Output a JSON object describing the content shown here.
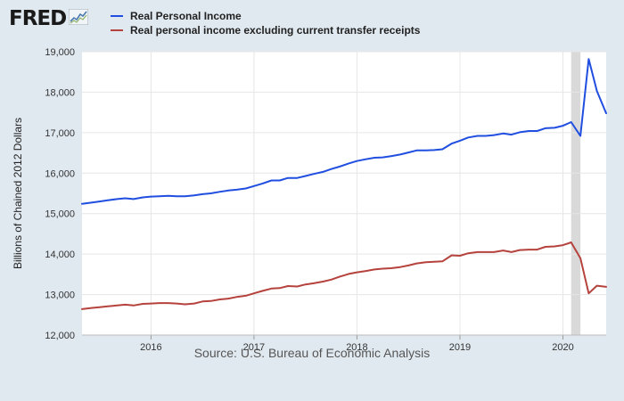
{
  "brand": {
    "logo_text": "FRED",
    "logo_icon": "trend-chart-icon"
  },
  "chart_data": {
    "type": "line",
    "title": "",
    "xlabel": "",
    "ylabel": "Billions of Chained 2012 Dollars",
    "xlim": [
      2015.33,
      2020.42
    ],
    "ylim": [
      12000,
      19000
    ],
    "yticks": [
      12000,
      13000,
      14000,
      15000,
      16000,
      17000,
      18000,
      19000
    ],
    "ytick_labels": [
      "12,000",
      "13,000",
      "14,000",
      "15,000",
      "16,000",
      "17,000",
      "18,000",
      "19,000"
    ],
    "xticks": [
      2016,
      2017,
      2018,
      2019,
      2020
    ],
    "xtick_labels": [
      "2016",
      "2017",
      "2018",
      "2019",
      "2020"
    ],
    "recession": {
      "start": 2020.08,
      "end": 2020.17
    },
    "series": [
      {
        "name": "Real Personal Income",
        "color": "#1f4ee0",
        "x": [
          2015.33,
          2015.42,
          2015.5,
          2015.58,
          2015.67,
          2015.75,
          2015.83,
          2015.92,
          2016.0,
          2016.08,
          2016.17,
          2016.25,
          2016.33,
          2016.42,
          2016.5,
          2016.58,
          2016.67,
          2016.75,
          2016.83,
          2016.92,
          2017.0,
          2017.08,
          2017.17,
          2017.25,
          2017.33,
          2017.42,
          2017.5,
          2017.58,
          2017.67,
          2017.75,
          2017.83,
          2017.92,
          2018.0,
          2018.08,
          2018.17,
          2018.25,
          2018.33,
          2018.42,
          2018.5,
          2018.58,
          2018.67,
          2018.75,
          2018.83,
          2018.92,
          2019.0,
          2019.08,
          2019.17,
          2019.25,
          2019.33,
          2019.42,
          2019.5,
          2019.58,
          2019.67,
          2019.75,
          2019.83,
          2019.92,
          2020.0,
          2020.08,
          2020.17,
          2020.25,
          2020.33,
          2020.42
        ],
        "values": [
          15240,
          15270,
          15300,
          15330,
          15360,
          15380,
          15360,
          15400,
          15420,
          15430,
          15440,
          15430,
          15430,
          15450,
          15480,
          15500,
          15540,
          15570,
          15590,
          15620,
          15680,
          15740,
          15820,
          15820,
          15880,
          15880,
          15930,
          15980,
          16030,
          16100,
          16160,
          16240,
          16300,
          16340,
          16380,
          16390,
          16420,
          16460,
          16510,
          16560,
          16560,
          16570,
          16590,
          16730,
          16800,
          16880,
          16920,
          16920,
          16940,
          16980,
          16950,
          17010,
          17040,
          17040,
          17110,
          17120,
          17170,
          17260,
          16920,
          18820,
          18030,
          17480
        ]
      },
      {
        "name": "Real personal income excluding current transfer receipts",
        "color": "#b5423c",
        "x": [
          2015.33,
          2015.42,
          2015.5,
          2015.58,
          2015.67,
          2015.75,
          2015.83,
          2015.92,
          2016.0,
          2016.08,
          2016.17,
          2016.25,
          2016.33,
          2016.42,
          2016.5,
          2016.58,
          2016.67,
          2016.75,
          2016.83,
          2016.92,
          2017.0,
          2017.08,
          2017.17,
          2017.25,
          2017.33,
          2017.42,
          2017.5,
          2017.58,
          2017.67,
          2017.75,
          2017.83,
          2017.92,
          2018.0,
          2018.08,
          2018.17,
          2018.25,
          2018.33,
          2018.42,
          2018.5,
          2018.58,
          2018.67,
          2018.75,
          2018.83,
          2018.92,
          2019.0,
          2019.08,
          2019.17,
          2019.25,
          2019.33,
          2019.42,
          2019.5,
          2019.58,
          2019.67,
          2019.75,
          2019.83,
          2019.92,
          2020.0,
          2020.08,
          2020.17,
          2020.25,
          2020.33,
          2020.42
        ],
        "values": [
          12640,
          12670,
          12690,
          12710,
          12730,
          12750,
          12730,
          12770,
          12780,
          12790,
          12790,
          12780,
          12760,
          12780,
          12830,
          12840,
          12880,
          12900,
          12940,
          12970,
          13030,
          13090,
          13150,
          13160,
          13210,
          13200,
          13250,
          13280,
          13320,
          13370,
          13440,
          13510,
          13550,
          13580,
          13620,
          13640,
          13650,
          13680,
          13720,
          13770,
          13800,
          13810,
          13820,
          13970,
          13960,
          14020,
          14050,
          14050,
          14050,
          14090,
          14050,
          14100,
          14110,
          14110,
          14180,
          14190,
          14220,
          14290,
          13900,
          13030,
          13220,
          13190
        ]
      }
    ]
  },
  "source_text": "Source: U.S. Bureau of Economic Analysis"
}
